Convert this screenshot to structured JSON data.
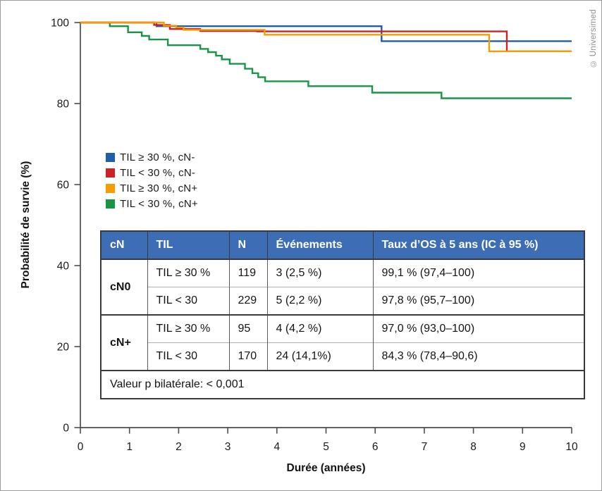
{
  "copyright": "© Universimed",
  "chart_data": {
    "type": "line",
    "subtype": "kaplan-meier-step",
    "title": "",
    "xlabel": "Durée (années)",
    "ylabel": "Probabilité de survie (%)",
    "xlim": [
      0,
      10
    ],
    "ylim": [
      0,
      100
    ],
    "x_ticks": [
      0,
      1,
      2,
      3,
      4,
      5,
      6,
      7,
      8,
      9,
      10
    ],
    "y_ticks": [
      0,
      20,
      40,
      60,
      80,
      100
    ],
    "grid": false,
    "legend_position": "upper-left-inside",
    "axis_color": "#4d4d4d",
    "tick_label_color": "#1a1a1a",
    "draw_order": [
      0,
      3,
      1,
      2
    ],
    "series": [
      {
        "name": "TIL ≥ 30 %, cN-",
        "color": "#1f5fa9",
        "points": [
          [
            0,
            100
          ],
          [
            1.55,
            100
          ],
          [
            1.55,
            99.1
          ],
          [
            6.13,
            99.1
          ],
          [
            6.13,
            95.4
          ],
          [
            10,
            95.4
          ]
        ]
      },
      {
        "name": "TIL < 30 %, cN-",
        "color": "#ce2026",
        "points": [
          [
            0,
            100
          ],
          [
            1.5,
            100
          ],
          [
            1.5,
            99.4
          ],
          [
            1.82,
            99.4
          ],
          [
            1.82,
            98.4
          ],
          [
            2.44,
            98.4
          ],
          [
            2.44,
            97.9
          ],
          [
            3.6,
            97.9
          ],
          [
            3.6,
            97.8
          ],
          [
            8.68,
            97.8
          ],
          [
            8.68,
            92.9
          ],
          [
            10,
            92.9
          ]
        ]
      },
      {
        "name": "TIL ≥ 30 %, cN+",
        "color": "#f59c00",
        "points": [
          [
            0,
            100
          ],
          [
            1.7,
            100
          ],
          [
            1.7,
            99.2
          ],
          [
            1.95,
            99.2
          ],
          [
            1.95,
            98.8
          ],
          [
            2.1,
            98.8
          ],
          [
            2.1,
            98.2
          ],
          [
            3.75,
            98.2
          ],
          [
            3.75,
            97.0
          ],
          [
            8.32,
            97.0
          ],
          [
            8.32,
            92.9
          ],
          [
            10,
            92.9
          ]
        ]
      },
      {
        "name": "TIL < 30 %, cN+",
        "color": "#169645",
        "points": [
          [
            0,
            100
          ],
          [
            0.6,
            100
          ],
          [
            0.6,
            99.1
          ],
          [
            0.97,
            99.1
          ],
          [
            0.97,
            97.6
          ],
          [
            1.25,
            97.6
          ],
          [
            1.25,
            96.7
          ],
          [
            1.4,
            96.7
          ],
          [
            1.4,
            95.8
          ],
          [
            1.78,
            95.8
          ],
          [
            1.78,
            94.4
          ],
          [
            2.44,
            94.4
          ],
          [
            2.44,
            93.5
          ],
          [
            2.6,
            93.5
          ],
          [
            2.6,
            92.7
          ],
          [
            2.76,
            92.7
          ],
          [
            2.76,
            91.8
          ],
          [
            2.88,
            91.8
          ],
          [
            2.88,
            90.9
          ],
          [
            3.04,
            90.9
          ],
          [
            3.04,
            89.8
          ],
          [
            3.35,
            89.8
          ],
          [
            3.35,
            88.6
          ],
          [
            3.5,
            88.6
          ],
          [
            3.5,
            87.5
          ],
          [
            3.62,
            87.5
          ],
          [
            3.62,
            86.5
          ],
          [
            3.76,
            86.5
          ],
          [
            3.76,
            85.5
          ],
          [
            4.64,
            85.5
          ],
          [
            4.64,
            84.3
          ],
          [
            5.94,
            84.3
          ],
          [
            5.94,
            82.7
          ],
          [
            7.35,
            82.7
          ],
          [
            7.35,
            81.3
          ],
          [
            10,
            81.3
          ]
        ]
      }
    ]
  },
  "table": {
    "header_bg": "#3d6db4",
    "stripe_bg": "#e8e8e8",
    "headers": [
      "cN",
      "TIL",
      "N",
      "Événements",
      "Taux d’OS à 5 ans (IC à 95 %)"
    ],
    "rows": [
      {
        "cn": "cN0",
        "til": "TIL ≥ 30 %",
        "n": "119",
        "events": "3 (2,5 %)",
        "os": "99,1 % (97,4–100)"
      },
      {
        "cn": "",
        "til": "TIL < 30",
        "n": "229",
        "events": "5 (2,2 %)",
        "os": "97,8 % (95,7–100)"
      },
      {
        "cn": "cN+",
        "til": "TIL ≥ 30 %",
        "n": "95",
        "events": "4 (4,2 %)",
        "os": "97,0 % (93,0–100)"
      },
      {
        "cn": "",
        "til": "TIL < 30",
        "n": "170",
        "events": "24 (14,1%)",
        "os": "84,3 % (78,4–90,6)"
      }
    ],
    "p_value_note": "Valeur p bilatérale: < 0,001"
  }
}
